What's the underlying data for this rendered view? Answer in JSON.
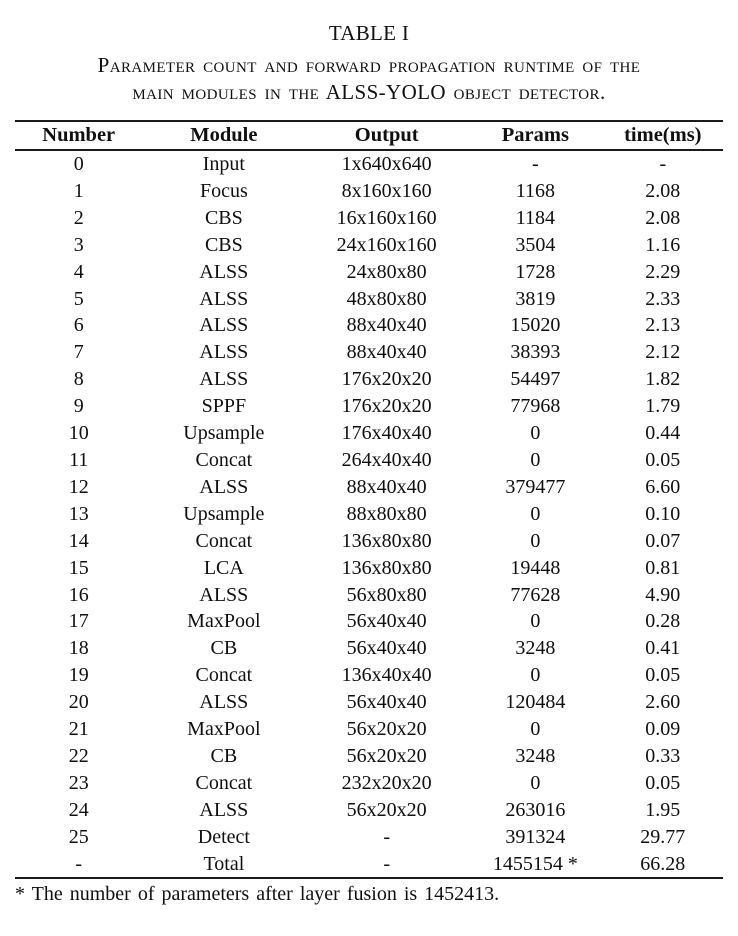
{
  "page": {
    "background_color": "#ffffff",
    "text_color": "#101010"
  },
  "table": {
    "title": "TABLE I",
    "caption_lines": [
      "Parameter count and forward propagation runtime of the",
      "main modules in the ALSS-YOLO object detector."
    ],
    "columns": [
      "Number",
      "Module",
      "Output",
      "Params",
      "time(ms)"
    ],
    "rows": [
      [
        "0",
        "Input",
        "1x640x640",
        "-",
        "-"
      ],
      [
        "1",
        "Focus",
        "8x160x160",
        "1168",
        "2.08"
      ],
      [
        "2",
        "CBS",
        "16x160x160",
        "1184",
        "2.08"
      ],
      [
        "3",
        "CBS",
        "24x160x160",
        "3504",
        "1.16"
      ],
      [
        "4",
        "ALSS",
        "24x80x80",
        "1728",
        "2.29"
      ],
      [
        "5",
        "ALSS",
        "48x80x80",
        "3819",
        "2.33"
      ],
      [
        "6",
        "ALSS",
        "88x40x40",
        "15020",
        "2.13"
      ],
      [
        "7",
        "ALSS",
        "88x40x40",
        "38393",
        "2.12"
      ],
      [
        "8",
        "ALSS",
        "176x20x20",
        "54497",
        "1.82"
      ],
      [
        "9",
        "SPPF",
        "176x20x20",
        "77968",
        "1.79"
      ],
      [
        "10",
        "Upsample",
        "176x40x40",
        "0",
        "0.44"
      ],
      [
        "11",
        "Concat",
        "264x40x40",
        "0",
        "0.05"
      ],
      [
        "12",
        "ALSS",
        "88x40x40",
        "379477",
        "6.60"
      ],
      [
        "13",
        "Upsample",
        "88x80x80",
        "0",
        "0.10"
      ],
      [
        "14",
        "Concat",
        "136x80x80",
        "0",
        "0.07"
      ],
      [
        "15",
        "LCA",
        "136x80x80",
        "19448",
        "0.81"
      ],
      [
        "16",
        "ALSS",
        "56x80x80",
        "77628",
        "4.90"
      ],
      [
        "17",
        "MaxPool",
        "56x40x40",
        "0",
        "0.28"
      ],
      [
        "18",
        "CB",
        "56x40x40",
        "3248",
        "0.41"
      ],
      [
        "19",
        "Concat",
        "136x40x40",
        "0",
        "0.05"
      ],
      [
        "20",
        "ALSS",
        "56x40x40",
        "120484",
        "2.60"
      ],
      [
        "21",
        "MaxPool",
        "56x20x20",
        "0",
        "0.09"
      ],
      [
        "22",
        "CB",
        "56x20x20",
        "3248",
        "0.33"
      ],
      [
        "23",
        "Concat",
        "232x20x20",
        "0",
        "0.05"
      ],
      [
        "24",
        "ALSS",
        "56x20x20",
        "263016",
        "1.95"
      ],
      [
        "25",
        "Detect",
        "-",
        "391324",
        "29.77"
      ],
      [
        "-",
        "Total",
        "-",
        "1455154 *",
        "66.28"
      ]
    ],
    "footnote": "* The number of parameters after layer fusion is 1452413."
  }
}
